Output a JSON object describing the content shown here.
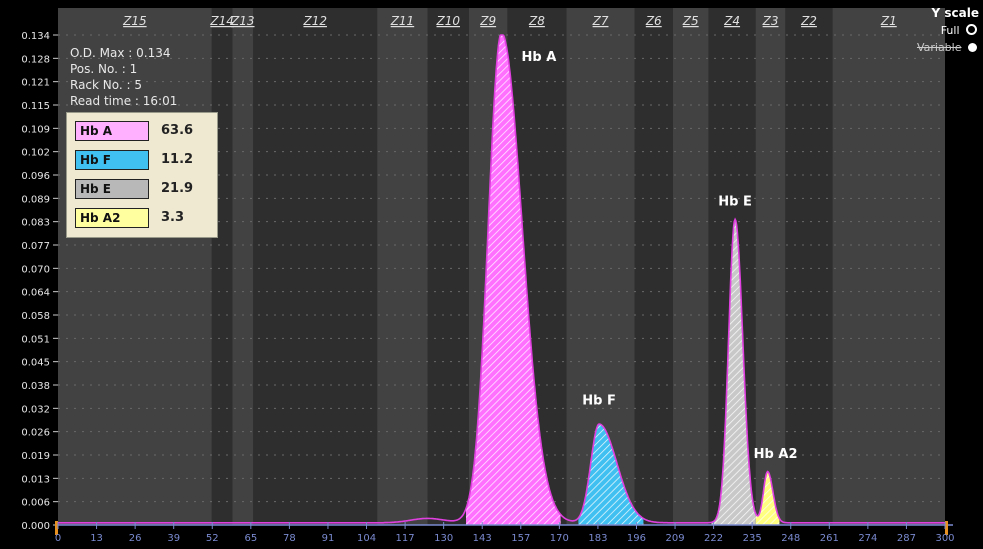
{
  "chart_data": {
    "type": "area",
    "ylim": [
      0,
      0.134
    ],
    "xlim": [
      0,
      300
    ],
    "y_ticks": [
      "0.000",
      "0.006",
      "0.013",
      "0.019",
      "0.026",
      "0.032",
      "0.038",
      "0.045",
      "0.051",
      "0.058",
      "0.064",
      "0.070",
      "0.077",
      "0.083",
      "0.089",
      "0.096",
      "0.102",
      "0.109",
      "0.115",
      "0.121",
      "0.128",
      "0.134"
    ],
    "x_ticks": [
      "0",
      "13",
      "26",
      "39",
      "52",
      "65",
      "78",
      "91",
      "104",
      "117",
      "130",
      "143",
      "157",
      "170",
      "183",
      "196",
      "209",
      "222",
      "235",
      "248",
      "261",
      "274",
      "287",
      "300"
    ],
    "zones": [
      {
        "label": "Z15",
        "x0": 0,
        "x1": 52
      },
      {
        "label": "Z14",
        "x0": 52,
        "x1": 59
      },
      {
        "label": "Z13",
        "x0": 59,
        "x1": 66
      },
      {
        "label": "Z12",
        "x0": 66,
        "x1": 108
      },
      {
        "label": "Z11",
        "x0": 108,
        "x1": 125
      },
      {
        "label": "Z10",
        "x0": 125,
        "x1": 139
      },
      {
        "label": "Z9",
        "x0": 139,
        "x1": 152
      },
      {
        "label": "Z8",
        "x0": 152,
        "x1": 172
      },
      {
        "label": "Z7",
        "x0": 172,
        "x1": 195
      },
      {
        "label": "Z6",
        "x0": 195,
        "x1": 208
      },
      {
        "label": "Z5",
        "x0": 208,
        "x1": 220
      },
      {
        "label": "Z4",
        "x0": 220,
        "x1": 236
      },
      {
        "label": "Z3",
        "x0": 236,
        "x1": 246
      },
      {
        "label": "Z2",
        "x0": 246,
        "x1": 262
      },
      {
        "label": "Z1",
        "x0": 262,
        "x1": 300
      }
    ],
    "peaks": [
      {
        "label": "Hb A",
        "center": 150,
        "height": 0.134,
        "left_sigma": 4.5,
        "right_sigma": 7.0,
        "from": 138,
        "to": 170,
        "fill": "#ff70ff"
      },
      {
        "label": "Hb F",
        "center": 183,
        "height": 0.027,
        "left_sigma": 2.8,
        "right_sigma": 6.0,
        "from": 176,
        "to": 198,
        "fill": "#40c0f0"
      },
      {
        "label": "Hb E",
        "center": 229,
        "height": 0.083,
        "left_sigma": 2.2,
        "right_sigma": 2.6,
        "from": 221,
        "to": 236,
        "fill": "#c8c8c8"
      },
      {
        "label": "Hb A2",
        "center": 240,
        "height": 0.014,
        "left_sigma": 1.4,
        "right_sigma": 1.8,
        "from": 236,
        "to": 244,
        "fill": "#ffff80"
      }
    ],
    "legend": [
      {
        "name": "Hb A",
        "value": "63.6",
        "color": "#ffb0ff"
      },
      {
        "name": "Hb F",
        "value": "11.2",
        "color": "#40c0f0"
      },
      {
        "name": "Hb E",
        "value": "21.9",
        "color": "#b8b8b8"
      },
      {
        "name": "Hb A2",
        "value": "3.3",
        "color": "#ffffa0"
      }
    ]
  },
  "info": {
    "od_max": "O.D. Max : 0.134",
    "pos_no": "Pos. No.   : 1",
    "rack_no": "Rack No.  : 5",
    "read_time": "Read time : 16:01"
  },
  "y_scale": {
    "title": "Y scale",
    "full": "Full",
    "variable": "Variable"
  }
}
